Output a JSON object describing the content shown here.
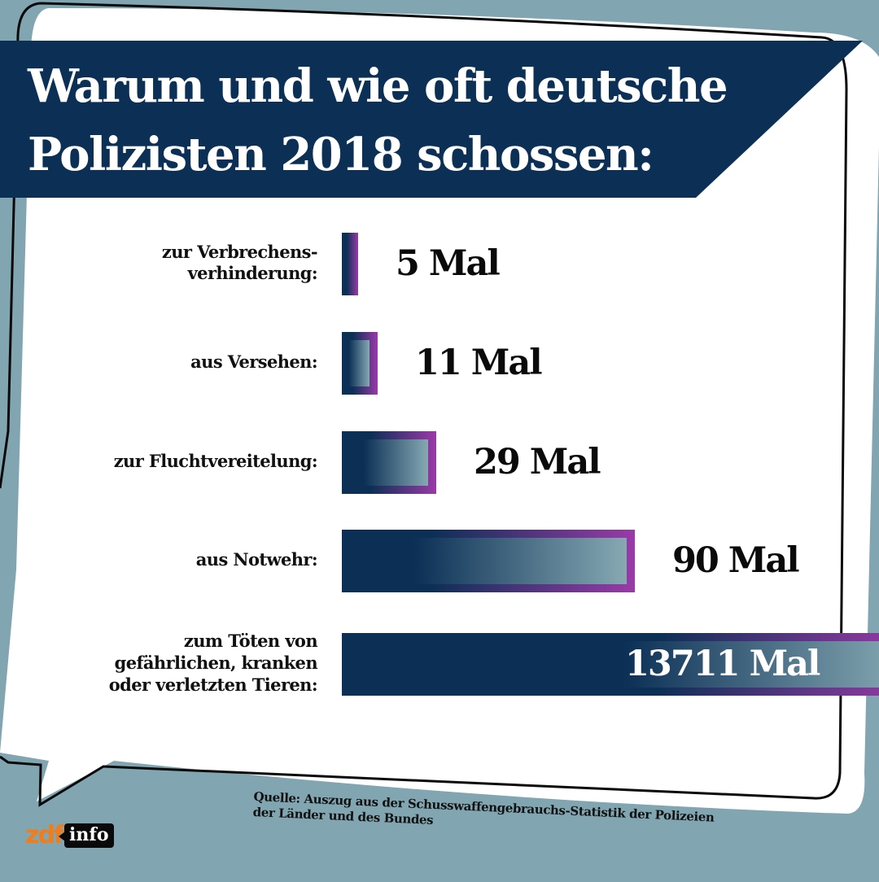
{
  "title": {
    "line1": "Warum und wie oft deutsche",
    "line2": "Polizisten 2018 schossen:"
  },
  "chart_data": {
    "type": "bar",
    "orientation": "horizontal",
    "title": "Warum und wie oft deutsche Polizisten 2018 schossen:",
    "categories": [
      "zur Verbrechensverhinderung",
      "aus Versehen",
      "zur Fluchtvereitelung",
      "aus Notwehr",
      "zum Töten von gefährlichen, kranken oder verletzten Tieren"
    ],
    "values": [
      5,
      11,
      29,
      90,
      13711
    ],
    "unit": "Mal",
    "axis_break": "last bar truncated (extends beyond frame)",
    "rows": [
      {
        "label_lines": [
          "zur Verbrechens-",
          "verhinderung:"
        ],
        "value": 5,
        "value_label": "5 Mal"
      },
      {
        "label_lines": [
          "aus Versehen:"
        ],
        "value": 11,
        "value_label": "11 Mal"
      },
      {
        "label_lines": [
          "zur Fluchtvereitelung:"
        ],
        "value": 29,
        "value_label": "29 Mal"
      },
      {
        "label_lines": [
          "aus Notwehr:"
        ],
        "value": 90,
        "value_label": "90 Mal"
      },
      {
        "label_lines": [
          "zum Töten von",
          "gefährlichen, kranken",
          "oder verletzten Tieren:"
        ],
        "value": 13711,
        "value_label": "13711 Mal"
      }
    ],
    "colors": {
      "bar_dark": "#0b2f55",
      "bar_light": "#86a9b3",
      "bar_border": "#9a3aa8"
    }
  },
  "source": {
    "line1": "Quelle: Auszug aus der Schusswaffengebrauchs-Statistik der Polizeien",
    "line2": "der Länder und des Bundes"
  },
  "logo": {
    "part1": "zdf",
    "part2": "info"
  },
  "colors": {
    "background": "#81a6b1",
    "banner": "#0b2f55",
    "bubble": "#ffffff",
    "logo_orange": "#f07d1a"
  }
}
